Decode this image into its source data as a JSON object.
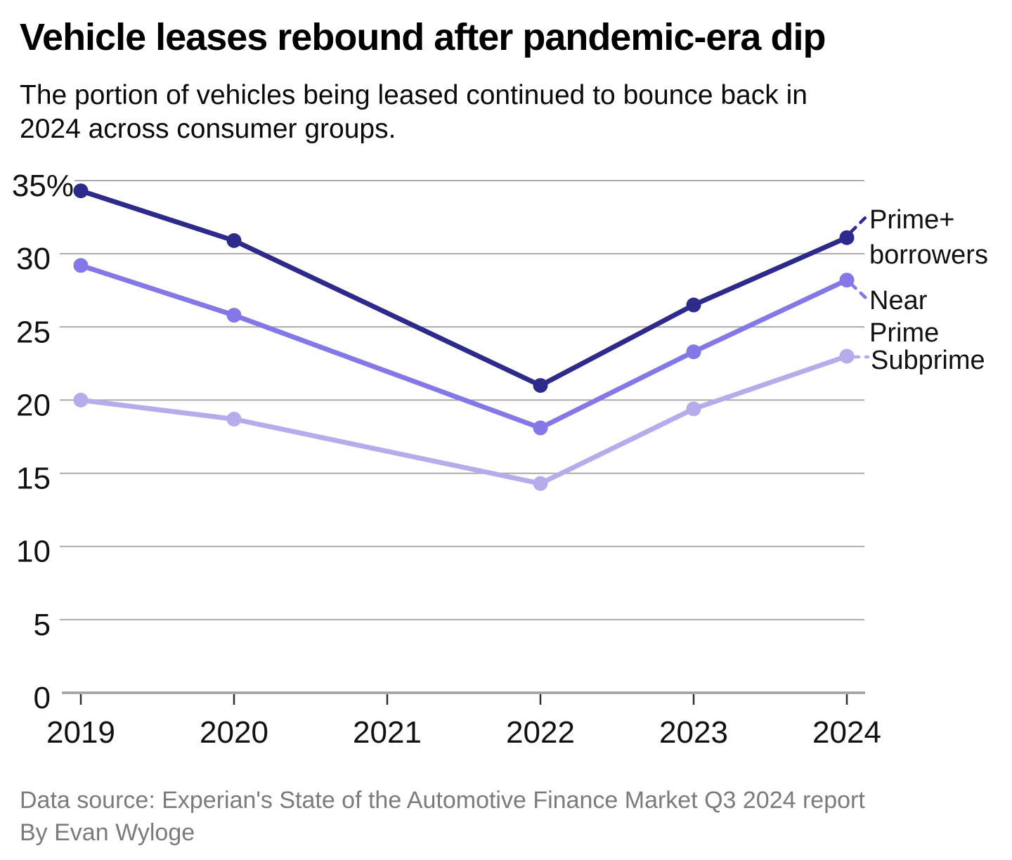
{
  "header": {
    "title": "Vehicle leases rebound after pandemic-era dip",
    "subtitle_lines": [
      "The portion of vehicles being leased continued to bounce back in",
      "2024 across consumer groups."
    ]
  },
  "footer": {
    "source": "Data source: Experian's State of the Automotive Finance Market Q3 2024 report",
    "byline": "By Evan Wyloge"
  },
  "chart_data": {
    "type": "line",
    "x": [
      2019,
      2020,
      2022,
      2023,
      2024
    ],
    "x_ticks": [
      2019,
      2020,
      2021,
      2022,
      2023,
      2024
    ],
    "series": [
      {
        "name": "Prime+ borrowers",
        "label_lines": [
          "Prime+",
          "borrowers"
        ],
        "color": "#2d2a8c",
        "values": [
          34.3,
          30.9,
          21.0,
          26.5,
          31.1
        ]
      },
      {
        "name": "Near Prime",
        "label_lines": [
          "Near",
          "Prime"
        ],
        "color": "#8478e8",
        "values": [
          29.2,
          25.8,
          18.1,
          23.3,
          28.2
        ]
      },
      {
        "name": "Subprime",
        "label_lines": [
          "Subprime"
        ],
        "color": "#b5adeb",
        "values": [
          20.0,
          18.7,
          14.3,
          19.4,
          23.0
        ]
      }
    ],
    "y_ticks": [
      0,
      5,
      10,
      15,
      20,
      25,
      30,
      35
    ],
    "y_tick_label_top": "35%",
    "ylim": [
      0,
      35
    ],
    "grid": true,
    "legend_position": "right-inline",
    "styles": {
      "grid_color": "#ababab",
      "axis_line_color": "#9f9f9f",
      "tick_color": "#2f2f2f"
    }
  }
}
